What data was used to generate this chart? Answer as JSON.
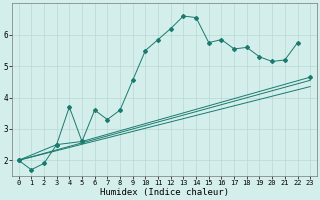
{
  "xlabel": "Humidex (Indice chaleur)",
  "bg_color": "#d4eeeb",
  "grid_color": "#b8d8d4",
  "line_color": "#1a7a6e",
  "x_values": [
    0,
    1,
    2,
    3,
    4,
    5,
    6,
    7,
    8,
    9,
    10,
    11,
    12,
    13,
    14,
    15,
    16,
    17,
    18,
    19,
    20,
    21,
    22,
    23
  ],
  "line1_y": [
    2.0,
    1.7,
    1.9,
    2.5,
    3.7,
    2.6,
    3.6,
    3.3,
    3.6,
    4.55,
    5.5,
    5.85,
    6.2,
    6.6,
    6.55,
    5.75,
    5.85,
    5.55,
    5.6,
    5.3,
    5.15,
    5.2,
    5.75,
    null
  ],
  "line2_x": [
    0,
    3,
    5,
    23
  ],
  "line2_y": [
    2.0,
    2.5,
    2.6,
    4.65
  ],
  "line3_x": [
    0,
    23
  ],
  "line3_y": [
    2.0,
    4.55
  ],
  "line4_x": [
    0,
    23
  ],
  "line4_y": [
    2.0,
    4.35
  ],
  "ylim": [
    1.5,
    7.0
  ],
  "xlim": [
    -0.5,
    23.5
  ],
  "yticks": [
    2,
    3,
    4,
    5,
    6
  ],
  "xticks": [
    0,
    1,
    2,
    3,
    4,
    5,
    6,
    7,
    8,
    9,
    10,
    11,
    12,
    13,
    14,
    15,
    16,
    17,
    18,
    19,
    20,
    21,
    22,
    23
  ]
}
